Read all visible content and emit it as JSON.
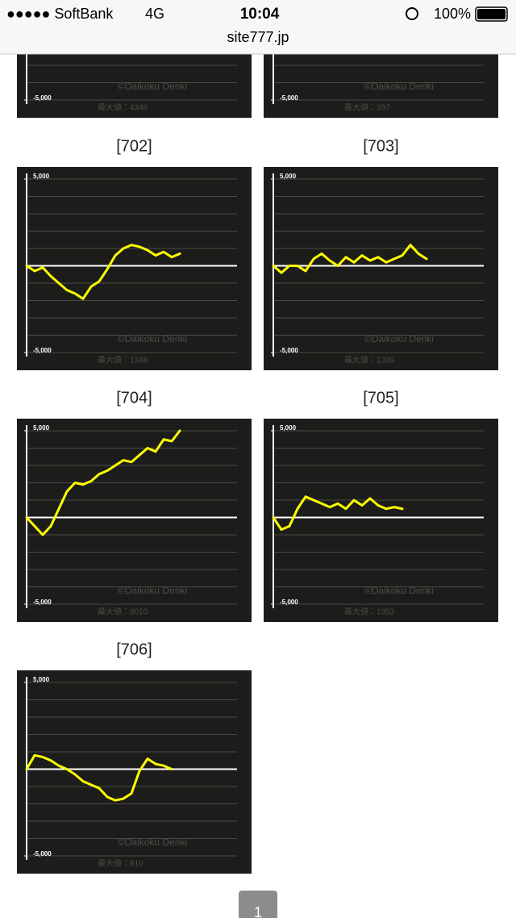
{
  "status_bar": {
    "carrier": "●●●●● SoftBank",
    "network": "4G",
    "time": "10:04",
    "battery": "100%"
  },
  "address_bar": {
    "url": "site777.jp"
  },
  "panels": [
    {
      "ylim": [
        -5000,
        5000
      ],
      "yticks": [
        {
          "value": -5000,
          "label": "-5,000"
        }
      ],
      "watermark": "©Daikoku Denki",
      "max_value": "最大値：4346",
      "color": "#ffff00"
    },
    {
      "ylim": [
        -5000,
        5000
      ],
      "yticks": [
        {
          "value": -5000,
          "label": "-5,000"
        }
      ],
      "watermark": "©Daikoku Denki",
      "max_value": "最大値：397",
      "color": "#ffff00"
    },
    {
      "label": "[702]",
      "ylim": [
        -5000,
        5000
      ],
      "yticks": [
        {
          "value": 5000,
          "label": "5,000"
        },
        {
          "value": -5000,
          "label": "-5,000"
        }
      ],
      "watermark": "©Daikoku Denki",
      "max_value": "最大値：1348",
      "color": "#ffff00",
      "values": [
        0,
        -300,
        -100,
        -600,
        -1000,
        -1400,
        -1600,
        -1900,
        -1200,
        -900,
        -200,
        600,
        1000,
        1200,
        1100,
        900,
        600,
        800,
        500,
        700
      ]
    },
    {
      "label": "[703]",
      "ylim": [
        -5000,
        5000
      ],
      "yticks": [
        {
          "value": 5000,
          "label": "5,000"
        },
        {
          "value": -5000,
          "label": "-5,000"
        }
      ],
      "watermark": "©Daikoku Denki",
      "max_value": "最大値：1339",
      "color": "#ffff00",
      "values": [
        0,
        -400,
        0,
        0,
        -300,
        400,
        700,
        300,
        0,
        500,
        200,
        600,
        300,
        500,
        200,
        400,
        600,
        1200,
        700,
        400
      ]
    },
    {
      "label": "[704]",
      "ylim": [
        -5000,
        5000
      ],
      "yticks": [
        {
          "value": 5000,
          "label": "5,000"
        },
        {
          "value": -5000,
          "label": "-5,000"
        }
      ],
      "watermark": "©Daikoku Denki",
      "max_value": "最大値：9010",
      "color": "#ffff00",
      "values": [
        0,
        -500,
        -1000,
        -500,
        500,
        1500,
        2000,
        1900,
        2100,
        2500,
        2700,
        3000,
        3300,
        3200,
        3600,
        4000,
        3800,
        4500,
        4400,
        5000
      ]
    },
    {
      "label": "[705]",
      "ylim": [
        -5000,
        5000
      ],
      "yticks": [
        {
          "value": 5000,
          "label": "5,000"
        },
        {
          "value": -5000,
          "label": "-5,000"
        }
      ],
      "watermark": "©Daikoku Denki",
      "max_value": "最大値：1353",
      "color": "#ffff00",
      "values": [
        0,
        -700,
        -500,
        500,
        1200,
        1000,
        800,
        600,
        800,
        500,
        1000,
        700,
        1100,
        700,
        500,
        600,
        500
      ]
    },
    {
      "label": "[706]",
      "ylim": [
        -5000,
        5000
      ],
      "yticks": [
        {
          "value": 5000,
          "label": "5,000"
        },
        {
          "value": -5000,
          "label": "-5,000"
        }
      ],
      "watermark": "©Daikoku Denki",
      "max_value": "最大値：810",
      "color": "#ffff00",
      "values": [
        0,
        800,
        700,
        500,
        200,
        0,
        -300,
        -700,
        -900,
        -1100,
        -1600,
        -1800,
        -1700,
        -1400,
        -100,
        600,
        300,
        200,
        0
      ]
    }
  ],
  "pagination": {
    "current": "1"
  }
}
